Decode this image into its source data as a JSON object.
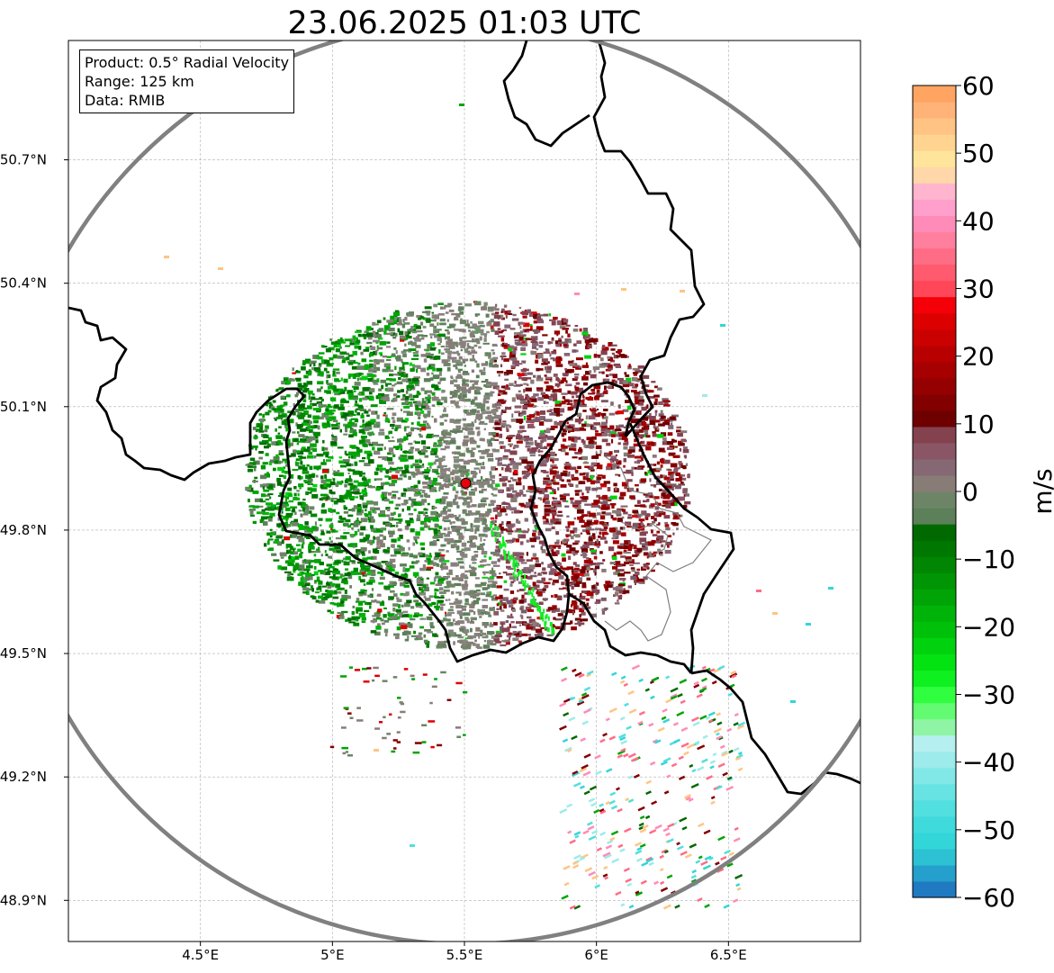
{
  "title": "23.06.2025 01:03 UTC",
  "info": {
    "product": "Product: 0.5° Radial Velocity",
    "range": "Range: 125 km",
    "data": "Data: RMIB"
  },
  "axes": {
    "x_ticks": [
      {
        "value": 4.5,
        "label": "4.5°E"
      },
      {
        "value": 5.0,
        "label": "5°E"
      },
      {
        "value": 5.5,
        "label": "5.5°E"
      },
      {
        "value": 6.0,
        "label": "6°E"
      },
      {
        "value": 6.5,
        "label": "6.5°E"
      }
    ],
    "y_ticks": [
      {
        "value": 50.7,
        "label": "50.7°N"
      },
      {
        "value": 50.4,
        "label": "50.4°N"
      },
      {
        "value": 50.1,
        "label": "50.1°N"
      },
      {
        "value": 49.8,
        "label": "49.8°N"
      },
      {
        "value": 49.5,
        "label": "49.5°N"
      },
      {
        "value": 49.2,
        "label": "49.2°N"
      },
      {
        "value": 48.9,
        "label": "48.9°N"
      }
    ],
    "lon_range": [
      4.0,
      7.0
    ],
    "lat_range": [
      48.8,
      50.99
    ],
    "grid": true
  },
  "radar": {
    "lon": 5.505,
    "lat": 49.914,
    "range_km": 125,
    "marker_color": "#e8000b"
  },
  "colorbar": {
    "unit": "m/s",
    "min": -60,
    "max": 60,
    "ticks": [
      {
        "value": 60,
        "label": "60"
      },
      {
        "value": 50,
        "label": "50"
      },
      {
        "value": 40,
        "label": "40"
      },
      {
        "value": 30,
        "label": "30"
      },
      {
        "value": 20,
        "label": "20"
      },
      {
        "value": 10,
        "label": "10"
      },
      {
        "value": 0,
        "label": "0"
      },
      {
        "value": -10,
        "label": "−10"
      },
      {
        "value": -20,
        "label": "−20"
      },
      {
        "value": -30,
        "label": "−30"
      },
      {
        "value": -40,
        "label": "−40"
      },
      {
        "value": -50,
        "label": "−50"
      },
      {
        "value": -60,
        "label": "−60"
      }
    ],
    "colors": [
      "#1f7ac2",
      "#259fcb",
      "#2dc2d3",
      "#32d5d8",
      "#3fdadc",
      "#52dfdf",
      "#68e3e3",
      "#82e7e7",
      "#9debeb",
      "#b6efef",
      "#8ff5a4",
      "#62fb72",
      "#30ff40",
      "#0ef020",
      "#03e312",
      "#00d20e",
      "#00c10a",
      "#00b308",
      "#00a406",
      "#009504",
      "#008602",
      "#007700",
      "#006900",
      "#5c8059",
      "#6d8566",
      "#887c77",
      "#866875",
      "#8a5665",
      "#84424f",
      "#6e0000",
      "#820000",
      "#950000",
      "#a70000",
      "#b90000",
      "#cb0000",
      "#dd0000",
      "#f50009",
      "#ff4757",
      "#ff5a6e",
      "#ff6c86",
      "#ff7f9e",
      "#ff8bb8",
      "#ff9fcb",
      "#ffb5cd",
      "#ffd7a8",
      "#ffe59c",
      "#ffd490",
      "#ffc483",
      "#ffb378",
      "#ffa461"
    ]
  }
}
